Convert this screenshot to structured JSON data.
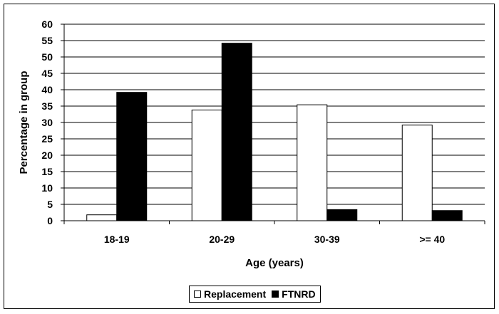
{
  "chart_data": {
    "type": "bar",
    "title": "",
    "xlabel": "Age (years)",
    "ylabel": "Percentage in group",
    "categories": [
      "18-19",
      "20-29",
      "30-39",
      ">= 40"
    ],
    "ylim": [
      0,
      60
    ],
    "yticks": [
      "0",
      "5",
      "10",
      "15",
      "20",
      "25",
      "30",
      "35",
      "40",
      "45",
      "50",
      "55",
      "60"
    ],
    "grid": true,
    "legend_position": "bottom",
    "series": [
      {
        "name": "Replacement",
        "values": [
          1.8,
          33.8,
          35.4,
          29.2
        ],
        "color": "#ffffff"
      },
      {
        "name": "FTNRD",
        "values": [
          39.2,
          54.2,
          3.4,
          3.1
        ],
        "color": "#000000"
      }
    ]
  }
}
